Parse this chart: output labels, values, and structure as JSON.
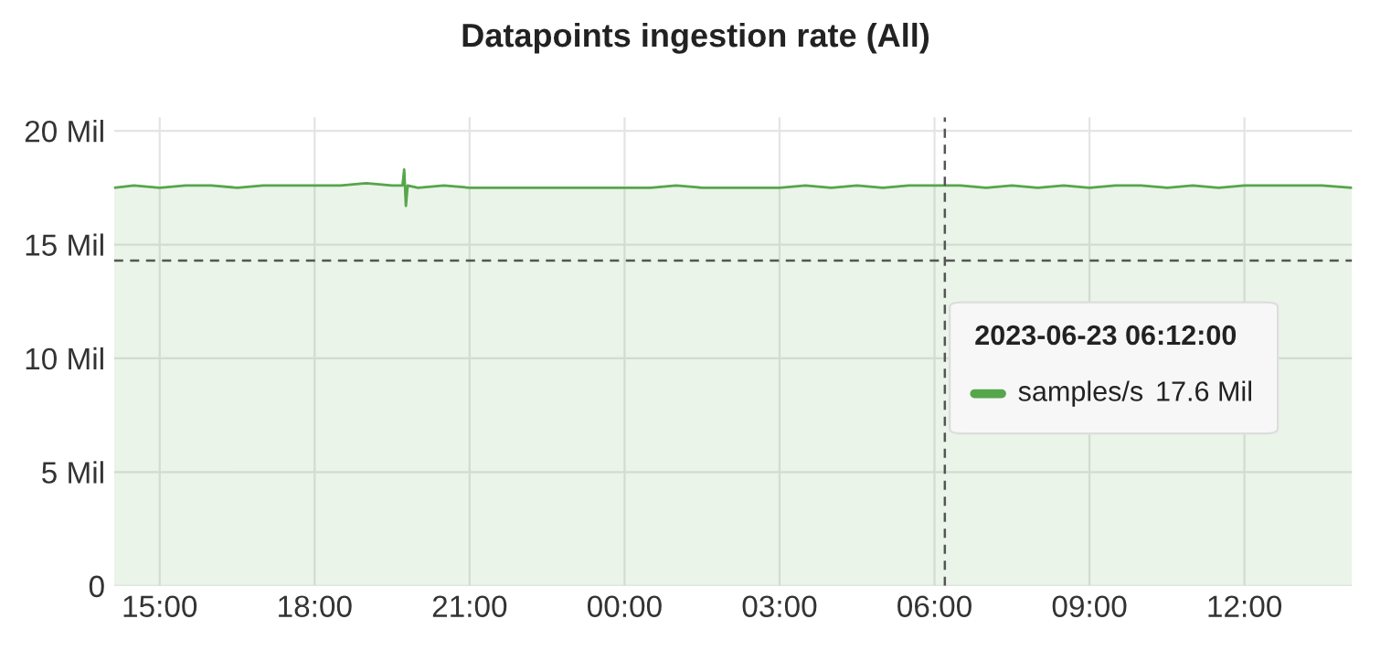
{
  "chart_data": {
    "type": "area",
    "title": "Datapoints ingestion rate (All)",
    "x": [
      "2023-06-22T14:07",
      "2023-06-22T14:30",
      "2023-06-22T15:00",
      "2023-06-22T15:30",
      "2023-06-22T16:00",
      "2023-06-22T16:30",
      "2023-06-22T17:00",
      "2023-06-22T17:30",
      "2023-06-22T18:00",
      "2023-06-22T18:30",
      "2023-06-22T19:00",
      "2023-06-22T19:30",
      "2023-06-22T19:42",
      "2023-06-22T19:44",
      "2023-06-22T19:46",
      "2023-06-22T19:48",
      "2023-06-22T20:00",
      "2023-06-22T20:30",
      "2023-06-22T21:00",
      "2023-06-22T21:30",
      "2023-06-22T22:00",
      "2023-06-22T22:30",
      "2023-06-22T23:00",
      "2023-06-22T23:30",
      "2023-06-23T00:00",
      "2023-06-23T00:30",
      "2023-06-23T01:00",
      "2023-06-23T01:30",
      "2023-06-23T02:00",
      "2023-06-23T02:30",
      "2023-06-23T03:00",
      "2023-06-23T03:30",
      "2023-06-23T04:00",
      "2023-06-23T04:30",
      "2023-06-23T05:00",
      "2023-06-23T05:30",
      "2023-06-23T06:00",
      "2023-06-23T06:12",
      "2023-06-23T06:30",
      "2023-06-23T07:00",
      "2023-06-23T07:30",
      "2023-06-23T08:00",
      "2023-06-23T08:30",
      "2023-06-23T09:00",
      "2023-06-23T09:30",
      "2023-06-23T10:00",
      "2023-06-23T10:30",
      "2023-06-23T11:00",
      "2023-06-23T11:30",
      "2023-06-23T12:00",
      "2023-06-23T12:30",
      "2023-06-23T13:00",
      "2023-06-23T13:30",
      "2023-06-23T14:05"
    ],
    "series": [
      {
        "name": "samples/s",
        "color": "#56a64b",
        "values": [
          17.5,
          17.6,
          17.5,
          17.6,
          17.6,
          17.5,
          17.6,
          17.6,
          17.6,
          17.6,
          17.7,
          17.6,
          17.6,
          18.3,
          16.7,
          17.6,
          17.5,
          17.6,
          17.5,
          17.5,
          17.5,
          17.5,
          17.5,
          17.5,
          17.5,
          17.5,
          17.6,
          17.5,
          17.5,
          17.5,
          17.5,
          17.6,
          17.5,
          17.6,
          17.5,
          17.6,
          17.6,
          17.6,
          17.6,
          17.5,
          17.6,
          17.5,
          17.6,
          17.5,
          17.6,
          17.6,
          17.5,
          17.6,
          17.5,
          17.6,
          17.6,
          17.6,
          17.6,
          17.5
        ]
      }
    ],
    "xlim": [
      "2023-06-22T14:07",
      "2023-06-23T14:05"
    ],
    "xticks": [
      {
        "value": "2023-06-22T15:00",
        "label": "15:00"
      },
      {
        "value": "2023-06-22T18:00",
        "label": "18:00"
      },
      {
        "value": "2023-06-22T21:00",
        "label": "21:00"
      },
      {
        "value": "2023-06-23T00:00",
        "label": "00:00"
      },
      {
        "value": "2023-06-23T03:00",
        "label": "03:00"
      },
      {
        "value": "2023-06-23T06:00",
        "label": "06:00"
      },
      {
        "value": "2023-06-23T09:00",
        "label": "09:00"
      },
      {
        "value": "2023-06-23T12:00",
        "label": "12:00"
      }
    ],
    "ylim": [
      0,
      20.6
    ],
    "yticks": [
      0,
      {
        "value": 5,
        "label": "5 Mil"
      },
      {
        "value": 10,
        "label": "10 Mil"
      },
      {
        "value": 15,
        "label": "15 Mil"
      },
      {
        "value": 20,
        "label": "20 Mil"
      }
    ],
    "ref_lines": [
      {
        "axis": "x",
        "value": "2023-06-23T06:12",
        "color": "#555555",
        "line_style": "dashed"
      },
      {
        "axis": "y",
        "value": 14.3,
        "color": "#555555",
        "line_style": "dashed"
      }
    ],
    "annotations": [
      "2023-06-23 06:12:00",
      "17.6 Mil"
    ],
    "grid": true,
    "legend": "right"
  }
}
